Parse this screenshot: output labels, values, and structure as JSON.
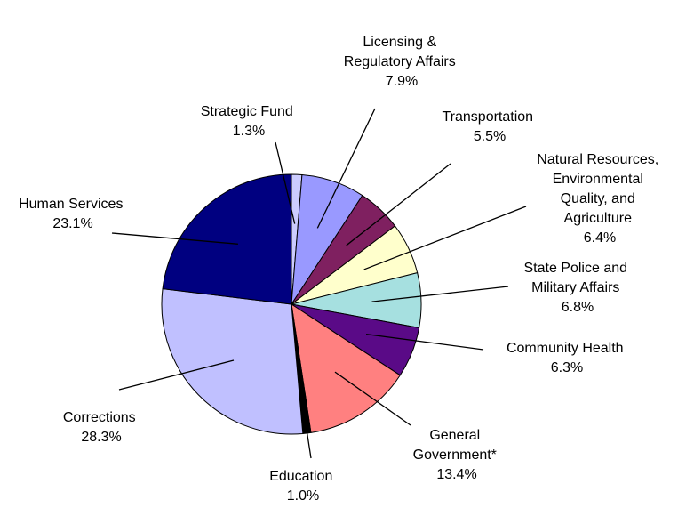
{
  "chart_data": {
    "type": "pie",
    "slices": [
      {
        "label": "Strategic Fund",
        "value": 1.3,
        "value_label": "1.3%",
        "color": "#ccccff"
      },
      {
        "label": "Licensing & Regulatory Affairs",
        "value": 7.9,
        "value_label": "7.9%",
        "color": "#9999ff"
      },
      {
        "label": "Transportation",
        "value": 5.5,
        "value_label": "5.5%",
        "color": "#7f2060"
      },
      {
        "label": "Natural Resources, Environmental Quality, and Agriculture",
        "value": 6.4,
        "value_label": "6.4%",
        "color": "#ffffcc"
      },
      {
        "label": "State Police and Military Affairs",
        "value": 6.8,
        "value_label": "6.8%",
        "color": "#a6e0e0"
      },
      {
        "label": "Community Health",
        "value": 6.3,
        "value_label": "6.3%",
        "color": "#5a0a87"
      },
      {
        "label": "General Government*",
        "value": 13.4,
        "value_label": "13.4%",
        "color": "#ff8080"
      },
      {
        "label": "Education",
        "value": 1.0,
        "value_label": "1.0%",
        "color": "#000000"
      },
      {
        "label": "Corrections",
        "value": 28.3,
        "value_label": "28.3%",
        "color": "#c0c0ff"
      },
      {
        "label": "Human Services",
        "value": 23.1,
        "value_label": "23.1%",
        "color": "#000080"
      }
    ],
    "labels": {
      "strategic_fund": {
        "lines": [
          "Strategic Fund",
          "1.3%"
        ]
      },
      "licensing": {
        "lines": [
          "Licensing &",
          "Regulatory Affairs",
          "7.9%"
        ]
      },
      "transportation": {
        "lines": [
          "Transportation",
          "5.5%"
        ]
      },
      "natural_resources": {
        "lines": [
          "Natural Resources,",
          "Environmental",
          "Quality, and",
          "Agriculture",
          "6.4%"
        ]
      },
      "state_police": {
        "lines": [
          "State Police and",
          "Military Affairs",
          "6.8%"
        ]
      },
      "community_health": {
        "lines": [
          "Community Health",
          "6.3%"
        ]
      },
      "general_government": {
        "lines": [
          "General",
          "Government*",
          "13.4%"
        ]
      },
      "education": {
        "lines": [
          "Education",
          "1.0%"
        ]
      },
      "corrections": {
        "lines": [
          "Corrections",
          "28.3%"
        ]
      },
      "human_services": {
        "lines": [
          "Human Services",
          "23.1%"
        ]
      }
    }
  }
}
